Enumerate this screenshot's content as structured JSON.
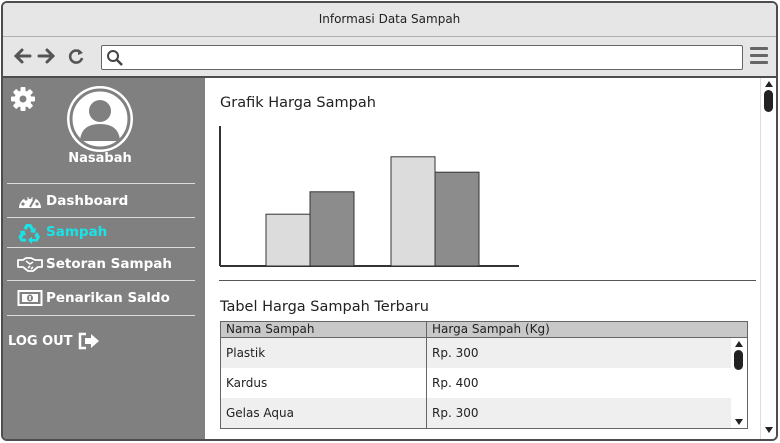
{
  "window": {
    "title": "Informasi Data Sampah"
  },
  "browser": {
    "url": ""
  },
  "sidebar": {
    "user_name": "Nasabah",
    "items": [
      {
        "label": "Dashboard",
        "icon": "dashboard-icon",
        "active": false
      },
      {
        "label": "Sampah",
        "icon": "recycle-icon",
        "active": true
      },
      {
        "label": "Setoran Sampah",
        "icon": "handshake-icon",
        "active": false
      },
      {
        "label": "Penarikan Saldo",
        "icon": "money-icon",
        "active": false
      }
    ],
    "logout_label": "LOG OUT",
    "active_color": "#19e3e6"
  },
  "main": {
    "chart_title": "Grafik Harga Sampah",
    "table_title": "Tabel Harga Sampah Terbaru",
    "table": {
      "columns": [
        "Nama Sampah",
        "Harga Sampah (Kg)"
      ],
      "rows": [
        [
          "Plastik",
          "Rp. 300"
        ],
        [
          "Kardus",
          "Rp. 400"
        ],
        [
          "Gelas Aqua",
          "Rp. 300"
        ]
      ]
    }
  },
  "chart_data": {
    "type": "bar",
    "categories": [
      "",
      ""
    ],
    "series": [
      {
        "values": [
          0.37,
          0.78
        ],
        "color": "#dcdcdc"
      },
      {
        "values": [
          0.53,
          0.67
        ],
        "color": "#8c8c8c"
      }
    ],
    "ylim": [
      0,
      1
    ],
    "grid": false
  }
}
